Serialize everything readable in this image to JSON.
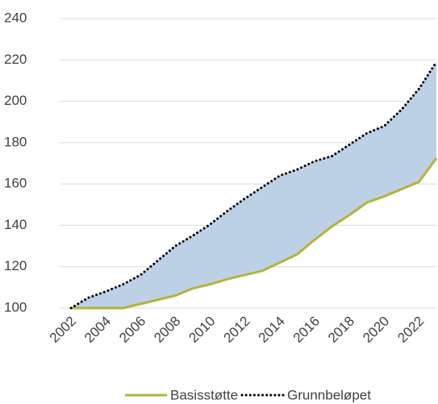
{
  "chart_data": {
    "type": "line",
    "x": [
      2002,
      2003,
      2004,
      2005,
      2006,
      2007,
      2008,
      2009,
      2010,
      2011,
      2012,
      2013,
      2014,
      2015,
      2016,
      2017,
      2018,
      2019,
      2020,
      2021,
      2022,
      2023
    ],
    "series": [
      {
        "name": "Basisstøtte",
        "color": "#b3b33a",
        "style": "solid",
        "values": [
          100,
          100,
          100,
          100,
          102,
          104,
          106,
          109.5,
          111.5,
          114,
          116,
          118,
          122,
          126,
          133,
          139.5,
          145,
          151,
          154,
          157.5,
          161,
          172.5
        ]
      },
      {
        "name": "Grunnbeløpet",
        "color": "#000000",
        "style": "dotted",
        "values": [
          100,
          105,
          108,
          111.5,
          116,
          123,
          130,
          135,
          140.5,
          147,
          153,
          158.5,
          164,
          167,
          171,
          173.5,
          179,
          184.5,
          188,
          196,
          206,
          219
        ]
      }
    ],
    "fill_between_color": "#bdd1e6",
    "xlim": [
      2002,
      2023
    ],
    "xticks": [
      2002,
      2004,
      2006,
      2008,
      2010,
      2012,
      2014,
      2016,
      2018,
      2020,
      2022
    ],
    "ylim": [
      100,
      240
    ],
    "yticks": [
      100,
      120,
      140,
      160,
      180,
      200,
      220,
      240
    ],
    "grid": true,
    "legend": "bottom"
  }
}
